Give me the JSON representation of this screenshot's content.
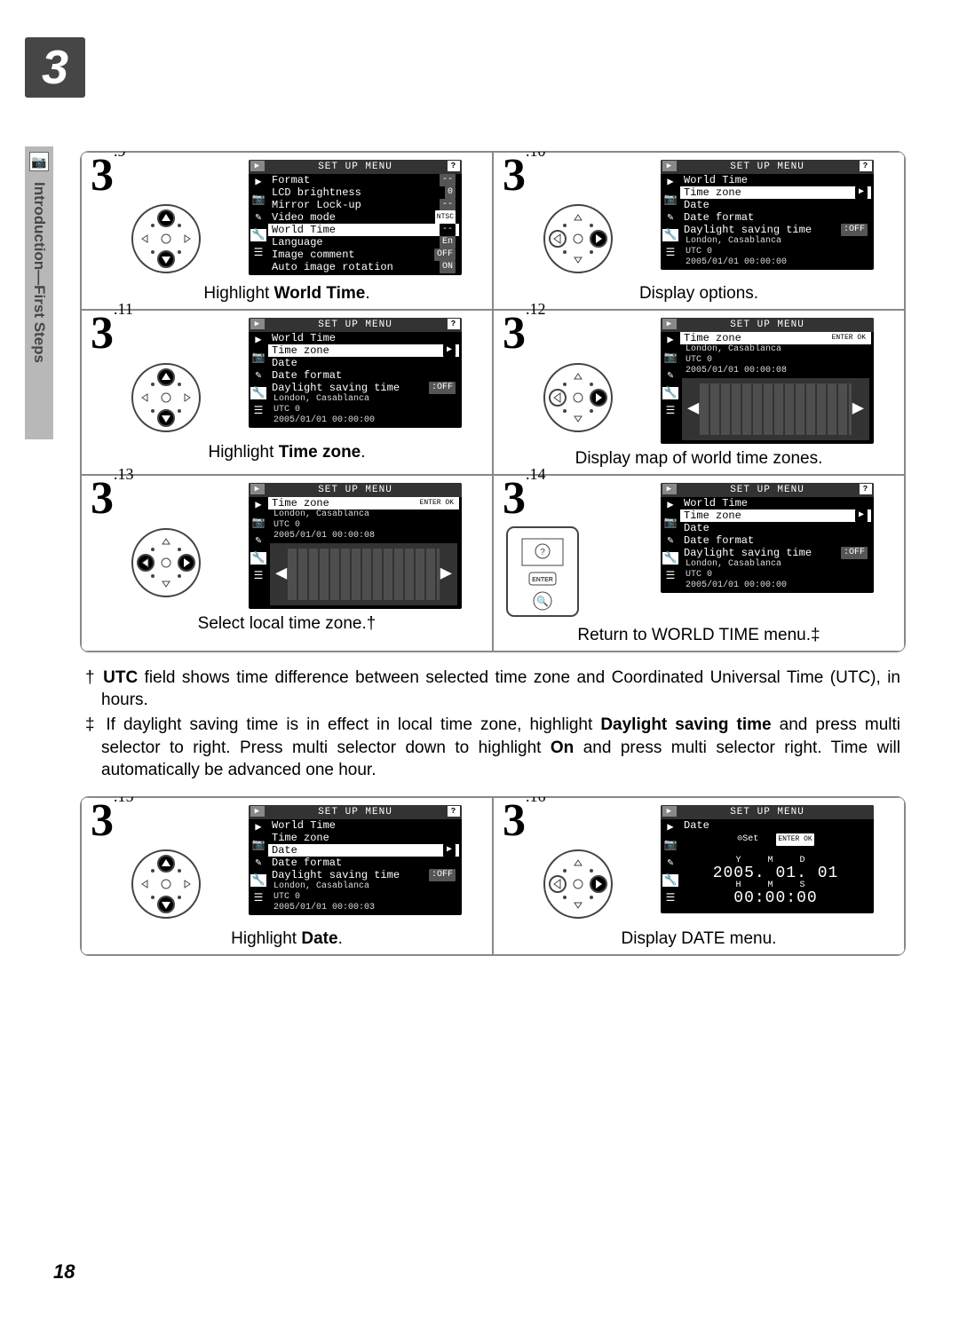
{
  "chapter": "3",
  "sidebar_label": "Introduction—First Steps",
  "page_number": "18",
  "lcd_header": "SET UP MENU",
  "steps": [
    {
      "num": "3",
      "sup": ".9",
      "controller": "ud",
      "lcd": {
        "type": "menu",
        "header_play": true,
        "header_help": true,
        "subtitle": null,
        "rows": [
          {
            "label": "Format",
            "val": "--"
          },
          {
            "label": "LCD brightness",
            "val": "0"
          },
          {
            "label": "Mirror Lock-up",
            "val": "--"
          },
          {
            "label": "Video mode",
            "val": "NTSC",
            "val_class": "ntsc"
          },
          {
            "label": "World Time",
            "val": "--",
            "sel": true
          },
          {
            "label": "Language",
            "val": "En"
          },
          {
            "label": "Image comment",
            "val": "OFF"
          },
          {
            "label": "Auto image rotation",
            "val": "ON"
          }
        ]
      },
      "caption_pre": "Highlight ",
      "caption_bold": "World Time",
      "caption_post": "."
    },
    {
      "num": "3",
      "sup": ".10",
      "controller": "lr",
      "lcd": {
        "type": "menu",
        "header_play": true,
        "header_help": true,
        "subtitle": "World Time",
        "rows": [
          {
            "label": "Time zone",
            "val": "▶",
            "val_class": "arrow",
            "sel": true
          },
          {
            "label": "Date",
            "val": ""
          },
          {
            "label": "Date format",
            "val": ""
          },
          {
            "label": "Daylight saving time",
            "val": ":OFF"
          }
        ],
        "info": [
          "London, Casablanca",
          "UTC 0",
          "2005/01/01 00:00:00"
        ]
      },
      "caption_pre": "Display options.",
      "caption_bold": "",
      "caption_post": ""
    },
    {
      "num": "3",
      "sup": ".11",
      "controller": "ud",
      "lcd": {
        "type": "menu",
        "header_play": true,
        "header_help": true,
        "subtitle": "World Time",
        "rows": [
          {
            "label": "Time zone",
            "val": "▶",
            "val_class": "arrow",
            "sel": true
          },
          {
            "label": "Date",
            "val": ""
          },
          {
            "label": "Date format",
            "val": ""
          },
          {
            "label": "Daylight saving time",
            "val": ":OFF"
          }
        ],
        "info": [
          "London, Casablanca",
          "UTC 0",
          "2005/01/01 00:00:00"
        ]
      },
      "caption_pre": "Highlight ",
      "caption_bold": "Time zone",
      "caption_post": "."
    },
    {
      "num": "3",
      "sup": ".12",
      "controller": "lr",
      "lcd": {
        "type": "map",
        "header_play": true,
        "header_help": false,
        "subtitle_sel": "Time zone",
        "subtitle_enter": true,
        "info": [
          "London, Casablanca",
          "UTC 0",
          "2005/01/01 00:00:08"
        ]
      },
      "caption_pre": "Display map of world time zones.",
      "caption_bold": "",
      "caption_post": ""
    },
    {
      "num": "3",
      "sup": ".13",
      "controller": "lr-fill",
      "lcd": {
        "type": "map",
        "header_play": true,
        "header_help": false,
        "subtitle_sel": "Time zone",
        "subtitle_enter": true,
        "info": [
          "London, Casablanca",
          "UTC 0",
          "2005/01/01 00:00:08"
        ]
      },
      "caption_pre": "Select local time zone.",
      "caption_bold": "",
      "caption_post": "†"
    },
    {
      "num": "3",
      "sup": ".14",
      "controller": "camera",
      "lcd": {
        "type": "menu",
        "header_play": true,
        "header_help": true,
        "subtitle": "World Time",
        "rows": [
          {
            "label": "Time zone",
            "val": "▶",
            "val_class": "arrow",
            "sel": true
          },
          {
            "label": "Date",
            "val": ""
          },
          {
            "label": "Date format",
            "val": ""
          },
          {
            "label": "Daylight saving time",
            "val": ":OFF"
          }
        ],
        "info": [
          "London, Casablanca",
          "UTC 0",
          "2005/01/01 00:00:00"
        ]
      },
      "caption_pre": "Return to WORLD TIME menu.",
      "caption_bold": "",
      "caption_post": "‡"
    }
  ],
  "note1_marker": "† ",
  "note1_bold": "UTC",
  "note1_text": " field shows time difference between selected time zone and Coordinated Universal Time (UTC), in hours.",
  "note2_marker": "‡ ",
  "note2_a": "If daylight saving time is in effect in local time zone, highlight ",
  "note2_b": "Daylight saving time",
  "note2_c": " and press multi selector to right.  Press multi selector down to highlight ",
  "note2_d": "On",
  "note2_e": " and press multi selector right.  Time will automatically be advanced one hour.",
  "steps2": [
    {
      "num": "3",
      "sup": ".15",
      "controller": "ud",
      "lcd": {
        "type": "menu",
        "header_play": true,
        "header_help": true,
        "subtitle": "World Time",
        "rows": [
          {
            "label": "Time zone",
            "val": ""
          },
          {
            "label": "Date",
            "val": "▶",
            "val_class": "arrow",
            "sel": true
          },
          {
            "label": "Date format",
            "val": ""
          },
          {
            "label": "Daylight saving time",
            "val": ":OFF"
          }
        ],
        "info": [
          "London, Casablanca",
          "UTC 0",
          "2005/01/01 00:00:03"
        ]
      },
      "caption_pre": "Highlight ",
      "caption_bold": "Date",
      "caption_post": "."
    },
    {
      "num": "3",
      "sup": ".16",
      "controller": "lr",
      "lcd": {
        "type": "date",
        "header_play": true,
        "header_help": false,
        "subtitle": "Date",
        "set_label": "⊙Set",
        "enter_label": "ENTER OK",
        "ymd_labels": "Y   M   D",
        "ymd": "2005. 01. 01",
        "hms_labels": "H   M   S",
        "hms": "00:00:00"
      },
      "caption_pre": "Display DATE menu.",
      "caption_bold": "",
      "caption_post": ""
    }
  ]
}
